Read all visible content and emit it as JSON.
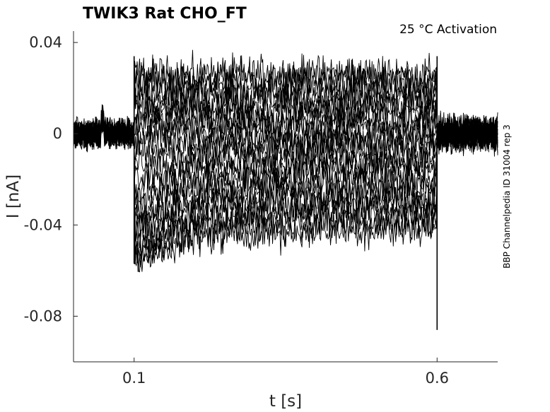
{
  "chart_data": {
    "type": "line",
    "title": "TWIK3  Rat  CHO_FT",
    "annotation": "25 °C  Activation",
    "side_label": "BBP Channelpedia ID 31004 rep 3",
    "xlabel": "t [s]",
    "ylabel": "I [nA]",
    "xlim": [
      0,
      0.7
    ],
    "ylim": [
      -0.1,
      0.045
    ],
    "x_ticks": [
      0.1,
      0.6
    ],
    "x_tick_labels": [
      "0.1",
      "0.6"
    ],
    "y_ticks": [
      0.04,
      0,
      -0.04,
      -0.08
    ],
    "y_tick_labels": [
      "0.04",
      "0",
      "-0.04",
      "-0.08"
    ],
    "grid": false,
    "stimulus_window": [
      0.1,
      0.6
    ],
    "sweep_step_levels": [
      0.026,
      0.024,
      0.021,
      0.018,
      0.015,
      0.012,
      0.009,
      0.006,
      0.003,
      0.0,
      -0.003,
      -0.006,
      -0.009,
      -0.012,
      -0.015,
      -0.018,
      -0.021,
      -0.024,
      -0.027,
      -0.03,
      -0.033,
      -0.036,
      -0.039,
      -0.042
    ],
    "baseline": 0.0,
    "step_onset_peak": -0.057,
    "offset_spike": -0.086,
    "series_color": "#000000"
  }
}
